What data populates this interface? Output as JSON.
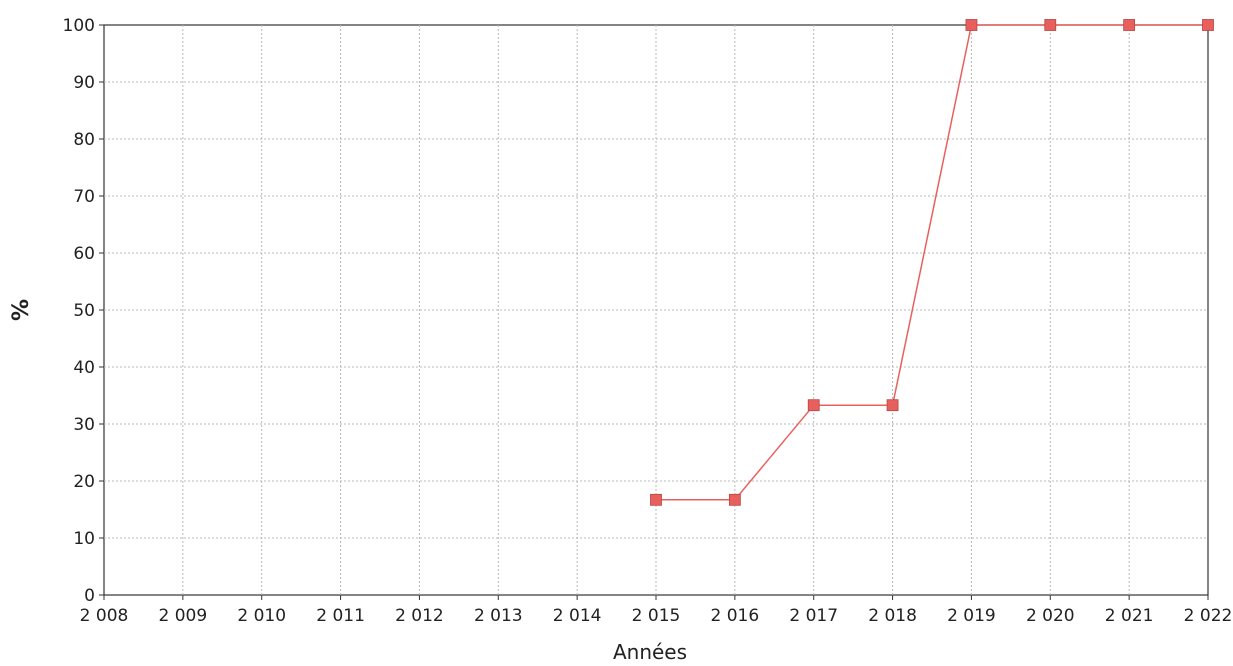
{
  "chart_data": {
    "type": "line",
    "title": "",
    "xlabel": "Années",
    "ylabel": "%",
    "x": [
      "2 008",
      "2 009",
      "2 010",
      "2 011",
      "2 012",
      "2 013",
      "2 014",
      "2 015",
      "2 016",
      "2 017",
      "2 018",
      "2 019",
      "2 020",
      "2 021",
      "2 022"
    ],
    "ylim": [
      0,
      100
    ],
    "yticks": [
      "0",
      "10",
      "20",
      "30",
      "40",
      "50",
      "60",
      "70",
      "80",
      "90",
      "100"
    ],
    "grid": true,
    "series": [
      {
        "color": "#e8605e",
        "marker": "square",
        "values": [
          null,
          null,
          null,
          null,
          null,
          null,
          null,
          16.7,
          16.7,
          33.3,
          33.3,
          100,
          100,
          100,
          100
        ]
      }
    ]
  }
}
